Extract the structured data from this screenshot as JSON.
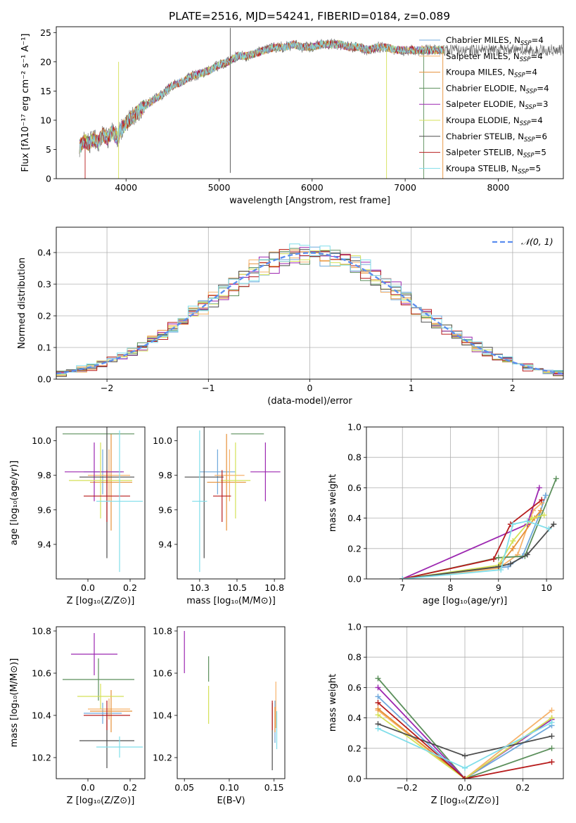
{
  "figure": {
    "title": "PLATE=2516, MJD=54241, FIBERID=0184, z=0.089"
  },
  "model_colors": {
    "Chabrier MILES": "#6fa8dc",
    "Salpeter MILES": "#f6b26b",
    "Kroupa MILES": "#e69138",
    "Chabrier ELODIE": "#5b8f5b",
    "Salpeter ELODIE": "#9c27b0",
    "Kroupa ELODIE": "#d4e157",
    "Chabrier STELIB": "#4d4d4d",
    "Salpeter STELIB": "#b71c1c",
    "Kroupa STELIB": "#80deea"
  },
  "chart_data": [
    {
      "type": "line",
      "panel": "spectrum",
      "xlabel": "wavelength [Angstrom, rest frame]",
      "ylabel": "Flux [fλ10⁻¹⁷ erg cm⁻² s⁻¹ A⁻¹]",
      "xlim": [
        3250,
        8700
      ],
      "ylim": [
        0,
        26
      ],
      "xticks": [
        4000,
        5000,
        6000,
        7000,
        8000
      ],
      "yticks": [
        0,
        5,
        10,
        15,
        20,
        25
      ],
      "data": {
        "x": [
          3500,
          3550,
          3600,
          3650,
          3700,
          3750,
          3800,
          3850,
          3900,
          3950,
          4000,
          4100,
          4200,
          4300,
          4400,
          4500,
          4600,
          4700,
          4800,
          4900,
          5000,
          5100,
          5200,
          5300,
          5400,
          5500,
          5600,
          5700,
          5800,
          5900,
          6000,
          6100,
          6200,
          6300,
          6400,
          6500,
          6600,
          6700,
          6800,
          6900,
          7000,
          7100,
          7200,
          7300,
          7400
        ],
        "y": [
          5.5,
          6.5,
          6.0,
          6.8,
          6.2,
          7.5,
          6.8,
          8.0,
          7.0,
          8.5,
          9.5,
          11.0,
          12.5,
          13.5,
          14.5,
          16.0,
          16.5,
          17.5,
          18.0,
          18.5,
          19.5,
          20.0,
          21.0,
          21.0,
          21.5,
          22.0,
          22.5,
          22.5,
          23.0,
          22.5,
          22.5,
          23.0,
          23.0,
          23.0,
          22.5,
          22.5,
          22.0,
          22.5,
          22.5,
          22.0,
          22.0,
          22.0,
          22.0,
          22.0,
          22.0
        ]
      },
      "series": [
        {
          "name": "Chabrier MILES",
          "legend": "Chabrier MILES, N",
          "nssp": "=4"
        },
        {
          "name": "Salpeter MILES",
          "legend": "Salpeter MILES, N",
          "nssp": "=4"
        },
        {
          "name": "Kroupa MILES",
          "legend": "Kroupa MILES, N",
          "nssp": "=4"
        },
        {
          "name": "Chabrier ELODIE",
          "legend": "Chabrier ELODIE, N",
          "nssp": "=4"
        },
        {
          "name": "Salpeter ELODIE",
          "legend": "Salpeter ELODIE, N",
          "nssp": "=3"
        },
        {
          "name": "Kroupa ELODIE",
          "legend": "Kroupa ELODIE, N",
          "nssp": "=4"
        },
        {
          "name": "Chabrier STELIB",
          "legend": "Chabrier STELIB, N",
          "nssp": "=6"
        },
        {
          "name": "Salpeter STELIB",
          "legend": "Salpeter STELIB, N",
          "nssp": "=5"
        },
        {
          "name": "Kroupa STELIB",
          "legend": "Kroupa STELIB, N",
          "nssp": "=5"
        }
      ],
      "legend_subscript": "SSP",
      "legend_position": "right"
    },
    {
      "type": "histogram",
      "panel": "residuals",
      "xlabel": "(data-model)/error",
      "ylabel": "Normed distribution",
      "xlim": [
        -2.5,
        2.5
      ],
      "ylim": [
        0,
        0.48
      ],
      "xticks": [
        -2,
        -1,
        0,
        1,
        2
      ],
      "yticks": [
        0.0,
        0.1,
        0.2,
        0.3,
        0.4
      ],
      "grid": true,
      "bins": [
        -2.5,
        -2.4,
        -2.3,
        -2.2,
        -2.1,
        -2.0,
        -1.9,
        -1.8,
        -1.7,
        -1.6,
        -1.5,
        -1.4,
        -1.3,
        -1.2,
        -1.1,
        -1.0,
        -0.9,
        -0.8,
        -0.7,
        -0.6,
        -0.5,
        -0.4,
        -0.3,
        -0.2,
        -0.1,
        0.0,
        0.1,
        0.2,
        0.3,
        0.4,
        0.5,
        0.6,
        0.7,
        0.8,
        0.9,
        1.0,
        1.1,
        1.2,
        1.3,
        1.4,
        1.5,
        1.6,
        1.7,
        1.8,
        1.9,
        2.0,
        2.1,
        2.2,
        2.3,
        2.4,
        2.5
      ],
      "gaussian_label": "𝒩(0, 1)",
      "legend_position": "top-right"
    },
    {
      "type": "scatter",
      "panel": "age-vs-Z",
      "xlabel": "Z [log₁₀(Z/Z⊙)]",
      "ylabel": "age  [log₁₀(age/yr)]",
      "xlim": [
        -0.15,
        0.27
      ],
      "ylim": [
        9.2,
        10.08
      ],
      "xticks": [
        0.0,
        0.2
      ],
      "yticks": [
        9.4,
        9.6,
        9.8,
        10.0
      ],
      "points": [
        {
          "series": "Chabrier MILES",
          "x": 0.07,
          "y": 9.82,
          "xerr": 0.09,
          "yerr": 0.13
        },
        {
          "series": "Salpeter MILES",
          "x": 0.1,
          "y": 9.8,
          "xerr": 0.1,
          "yerr": 0.15
        },
        {
          "series": "Kroupa MILES",
          "x": 0.11,
          "y": 9.76,
          "xerr": 0.1,
          "yerr": 0.28
        },
        {
          "series": "Chabrier ELODIE",
          "x": 0.05,
          "y": 10.04,
          "xerr": 0.17,
          "yerr": 0.0
        },
        {
          "series": "Salpeter ELODIE",
          "x": 0.03,
          "y": 9.82,
          "xerr": 0.14,
          "yerr": 0.17
        },
        {
          "series": "Kroupa ELODIE",
          "x": 0.06,
          "y": 9.77,
          "xerr": 0.15,
          "yerr": 0.22
        },
        {
          "series": "Chabrier STELIB",
          "x": 0.09,
          "y": 9.79,
          "xerr": 0.13,
          "yerr": 0.47
        },
        {
          "series": "Salpeter STELIB",
          "x": 0.09,
          "y": 9.68,
          "xerr": 0.11,
          "yerr": 0.15
        },
        {
          "series": "Kroupa STELIB",
          "x": 0.15,
          "y": 9.65,
          "xerr": 0.11,
          "yerr": 0.41
        }
      ]
    },
    {
      "type": "scatter",
      "panel": "age-vs-mass",
      "xlabel": "mass [log₁₀(M/M⊙)]",
      "ylabel": "",
      "xlim": [
        10.1,
        10.82
      ],
      "ylim": [
        9.2,
        10.08
      ],
      "xticks": [
        10.25,
        10.5,
        10.75
      ],
      "yticks": [
        9.4,
        9.6,
        9.8,
        10.0
      ],
      "points": [
        {
          "series": "Chabrier MILES",
          "x": 10.37,
          "y": 9.82,
          "xerr": 0.12,
          "yerr": 0.13
        },
        {
          "series": "Salpeter MILES",
          "x": 10.45,
          "y": 9.8,
          "xerr": 0.1,
          "yerr": 0.15
        },
        {
          "series": "Kroupa MILES",
          "x": 10.43,
          "y": 9.76,
          "xerr": 0.13,
          "yerr": 0.28
        },
        {
          "series": "Chabrier ELODIE",
          "x": 10.57,
          "y": 10.04,
          "xerr": 0.11,
          "yerr": 0.0
        },
        {
          "series": "Salpeter ELODIE",
          "x": 10.69,
          "y": 9.82,
          "xerr": 0.1,
          "yerr": 0.17
        },
        {
          "series": "Kroupa ELODIE",
          "x": 10.49,
          "y": 9.77,
          "xerr": 0.1,
          "yerr": 0.22
        },
        {
          "series": "Chabrier STELIB",
          "x": 10.28,
          "y": 9.79,
          "xerr": 0.13,
          "yerr": 0.47
        },
        {
          "series": "Salpeter STELIB",
          "x": 10.4,
          "y": 9.68,
          "xerr": 0.06,
          "yerr": 0.15
        },
        {
          "series": "Kroupa STELIB",
          "x": 10.25,
          "y": 9.65,
          "xerr": 0.05,
          "yerr": 0.41
        }
      ]
    },
    {
      "type": "line",
      "panel": "mass-weight-vs-age",
      "xlabel": "age  [log₁₀(age/yr)]",
      "ylabel": "mass weight",
      "xlim": [
        6.25,
        10.35
      ],
      "ylim": [
        0,
        1
      ],
      "xticks": [
        7,
        8,
        9,
        10
      ],
      "yticks": [
        0.0,
        0.2,
        0.4,
        0.6,
        0.8,
        1.0
      ],
      "grid": true,
      "series": [
        {
          "name": "Chabrier MILES",
          "x": [
            7.0,
            9.2,
            9.5,
            9.85,
            9.98
          ],
          "y": [
            0.0,
            0.08,
            0.15,
            0.42,
            0.55
          ]
        },
        {
          "name": "Salpeter MILES",
          "x": [
            7.0,
            9.0,
            9.4,
            9.72,
            9.9
          ],
          "y": [
            0.0,
            0.07,
            0.16,
            0.45,
            0.5
          ]
        },
        {
          "name": "Kroupa MILES",
          "x": [
            7.0,
            9.0,
            9.3,
            9.75,
            9.88
          ],
          "y": [
            0.0,
            0.08,
            0.2,
            0.4,
            0.45
          ]
        },
        {
          "name": "Chabrier ELODIE",
          "x": [
            7.0,
            9.0,
            9.55,
            10.2
          ],
          "y": [
            0.0,
            0.14,
            0.15,
            0.66
          ]
        },
        {
          "name": "Salpeter ELODIE",
          "x": [
            7.0,
            9.6,
            9.85
          ],
          "y": [
            0.0,
            0.36,
            0.6
          ]
        },
        {
          "name": "Kroupa ELODIE",
          "x": [
            7.0,
            9.0,
            9.3,
            9.7,
            9.95
          ],
          "y": [
            0.0,
            0.09,
            0.25,
            0.4,
            0.42
          ]
        },
        {
          "name": "Chabrier STELIB",
          "x": [
            7.0,
            9.0,
            9.25,
            9.6,
            10.15
          ],
          "y": [
            0.0,
            0.08,
            0.1,
            0.16,
            0.36
          ]
        },
        {
          "name": "Salpeter STELIB",
          "x": [
            7.0,
            8.9,
            9.25,
            9.9
          ],
          "y": [
            0.0,
            0.13,
            0.36,
            0.52
          ]
        },
        {
          "name": "Kroupa STELIB",
          "x": [
            7.0,
            9.05,
            9.3,
            9.6,
            10.05
          ],
          "y": [
            0.0,
            0.06,
            0.36,
            0.38,
            0.33
          ]
        }
      ]
    },
    {
      "type": "scatter",
      "panel": "mass-vs-Z",
      "xlabel": "Z [log₁₀(Z/Z⊙)]",
      "ylabel": "mass [log₁₀(M/M⊙)]",
      "xlim": [
        -0.15,
        0.27
      ],
      "ylim": [
        10.1,
        10.82
      ],
      "xticks": [
        0.0,
        0.2
      ],
      "yticks": [
        10.2,
        10.4,
        10.6,
        10.8
      ],
      "points": [
        {
          "series": "Chabrier MILES",
          "x": 0.07,
          "y": 10.41,
          "xerr": 0.09,
          "yerr": 0.05
        },
        {
          "series": "Salpeter MILES",
          "x": 0.1,
          "y": 10.43,
          "xerr": 0.1,
          "yerr": 0.05
        },
        {
          "series": "Kroupa MILES",
          "x": 0.11,
          "y": 10.42,
          "xerr": 0.1,
          "yerr": 0.1
        },
        {
          "series": "Chabrier ELODIE",
          "x": 0.05,
          "y": 10.57,
          "xerr": 0.17,
          "yerr": 0.1
        },
        {
          "series": "Salpeter ELODIE",
          "x": 0.03,
          "y": 10.69,
          "xerr": 0.11,
          "yerr": 0.1
        },
        {
          "series": "Kroupa ELODIE",
          "x": 0.06,
          "y": 10.49,
          "xerr": 0.11,
          "yerr": 0.06
        },
        {
          "series": "Chabrier STELIB",
          "x": 0.09,
          "y": 10.28,
          "xerr": 0.13,
          "yerr": 0.13
        },
        {
          "series": "Salpeter STELIB",
          "x": 0.09,
          "y": 10.4,
          "xerr": 0.11,
          "yerr": 0.07
        },
        {
          "series": "Kroupa STELIB",
          "x": 0.15,
          "y": 10.25,
          "xerr": 0.11,
          "yerr": 0.05
        }
      ]
    },
    {
      "type": "scatter",
      "panel": "mass-vs-EBV",
      "xlabel": "E(B-V)",
      "ylabel": "",
      "xlim": [
        0.042,
        0.162
      ],
      "ylim": [
        10.1,
        10.82
      ],
      "xticks": [
        0.05,
        0.1,
        0.15
      ],
      "yticks": [
        10.2,
        10.4,
        10.6,
        10.8
      ],
      "points": [
        {
          "series": "Chabrier MILES",
          "x": 0.151,
          "y": 10.37,
          "yerr": 0.1
        },
        {
          "series": "Salpeter MILES",
          "x": 0.152,
          "y": 10.45,
          "yerr": 0.11
        },
        {
          "series": "Kroupa MILES",
          "x": 0.151,
          "y": 10.38,
          "yerr": 0.06
        },
        {
          "series": "Chabrier ELODIE",
          "x": 0.077,
          "y": 10.62,
          "yerr": 0.06
        },
        {
          "series": "Salpeter ELODIE",
          "x": 0.05,
          "y": 10.7,
          "yerr": 0.1
        },
        {
          "series": "Kroupa ELODIE",
          "x": 0.077,
          "y": 10.45,
          "yerr": 0.09
        },
        {
          "series": "Chabrier STELIB",
          "x": 0.148,
          "y": 10.3,
          "yerr": 0.16
        },
        {
          "series": "Salpeter STELIB",
          "x": 0.148,
          "y": 10.4,
          "yerr": 0.07
        },
        {
          "series": "Kroupa STELIB",
          "x": 0.153,
          "y": 10.33,
          "yerr": 0.09
        }
      ]
    },
    {
      "type": "line",
      "panel": "mass-weight-vs-Z",
      "xlabel": "Z [log₁₀(Z/Z⊙)]",
      "ylabel": "mass weight",
      "xlim": [
        -0.34,
        0.34
      ],
      "ylim": [
        0,
        1
      ],
      "xticks": [
        -0.2,
        0.0,
        0.2
      ],
      "yticks": [
        0.0,
        0.2,
        0.4,
        0.6,
        0.8,
        1.0
      ],
      "grid": true,
      "series": [
        {
          "name": "Chabrier MILES",
          "x": [
            -0.3,
            0.0,
            0.3
          ],
          "y": [
            0.54,
            0.0,
            0.35
          ]
        },
        {
          "name": "Salpeter MILES",
          "x": [
            -0.3,
            0.0,
            0.3
          ],
          "y": [
            0.45,
            0.0,
            0.45
          ]
        },
        {
          "name": "Kroupa MILES",
          "x": [
            -0.3,
            0.0,
            0.3
          ],
          "y": [
            0.46,
            0.0,
            0.4
          ]
        },
        {
          "name": "Chabrier ELODIE",
          "x": [
            -0.3,
            0.0,
            0.3
          ],
          "y": [
            0.66,
            0.0,
            0.2
          ]
        },
        {
          "name": "Salpeter ELODIE",
          "x": [
            -0.3,
            0.0,
            0.3
          ],
          "y": [
            0.6,
            0.0,
            0.39
          ]
        },
        {
          "name": "Kroupa ELODIE",
          "x": [
            -0.3,
            0.0,
            0.3
          ],
          "y": [
            0.42,
            0.0,
            0.4
          ]
        },
        {
          "name": "Chabrier STELIB",
          "x": [
            -0.3,
            0.0,
            0.3
          ],
          "y": [
            0.36,
            0.15,
            0.28
          ]
        },
        {
          "name": "Salpeter STELIB",
          "x": [
            -0.3,
            0.0,
            0.3
          ],
          "y": [
            0.5,
            0.0,
            0.11
          ]
        },
        {
          "name": "Kroupa STELIB",
          "x": [
            -0.3,
            0.0,
            0.3
          ],
          "y": [
            0.33,
            0.07,
            0.37
          ]
        }
      ]
    }
  ]
}
